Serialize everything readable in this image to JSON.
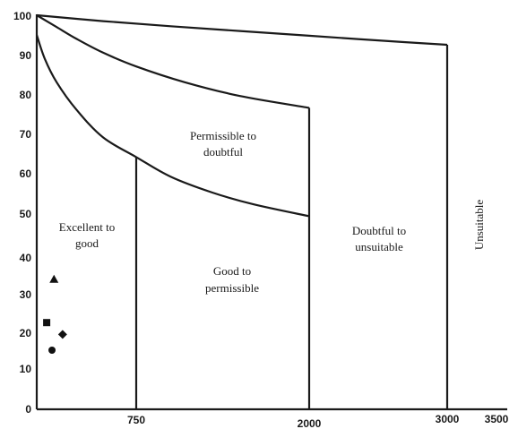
{
  "chart_data": {
    "type": "scatter",
    "title": "",
    "xlabel": "",
    "ylabel": "",
    "x_ticks": [
      "750",
      "2000",
      "3000",
      "3500"
    ],
    "y_ticks": [
      "0",
      "10",
      "20",
      "30",
      "40",
      "50",
      "60",
      "70",
      "80",
      "90",
      "100"
    ],
    "xlim": [
      0,
      3500
    ],
    "ylim": [
      0,
      100
    ],
    "region_labels": [
      {
        "id": "excellent",
        "lines": [
          "Excellent to",
          "good"
        ]
      },
      {
        "id": "permissible-doubtful",
        "lines": [
          "Permissible to",
          "doubtful"
        ]
      },
      {
        "id": "good-permissible",
        "lines": [
          "Good to",
          "permissible"
        ]
      },
      {
        "id": "doubtful-unsuitable",
        "lines": [
          "Doubtful to",
          "unsuitable"
        ]
      },
      {
        "id": "unsuitable",
        "lines": [
          "Unsuitable"
        ]
      }
    ],
    "boundary_curves": [
      {
        "id": "curve-bottom",
        "points": [
          [
            0,
            95
          ],
          [
            60,
            89
          ],
          [
            150,
            83
          ],
          [
            300,
            76
          ],
          [
            500,
            69
          ],
          [
            750,
            64
          ],
          [
            1000,
            59
          ],
          [
            1300,
            55
          ],
          [
            1600,
            52
          ],
          [
            2000,
            49
          ]
        ]
      },
      {
        "id": "curve-middle",
        "points": [
          [
            0,
            100
          ],
          [
            150,
            97
          ],
          [
            300,
            94
          ],
          [
            500,
            90.5
          ],
          [
            750,
            87
          ],
          [
            1100,
            83
          ],
          [
            1500,
            79.5
          ],
          [
            2000,
            76.5
          ]
        ]
      },
      {
        "id": "curve-top",
        "points": [
          [
            0,
            100
          ],
          [
            500,
            98.5
          ],
          [
            1000,
            97.2
          ],
          [
            1500,
            96
          ],
          [
            2000,
            94.8
          ],
          [
            2500,
            93.6
          ],
          [
            3000,
            92.5
          ]
        ]
      }
    ],
    "vertical_lines": [
      {
        "id": "vline-750",
        "x": 750,
        "y_top": 64
      },
      {
        "id": "vline-2000",
        "x": 2000,
        "y_top": 76.5
      },
      {
        "id": "vline-3000",
        "x": 3000,
        "y_top": 92.5
      }
    ],
    "points": [
      {
        "shape": "triangle",
        "x": 130,
        "y": 33
      },
      {
        "shape": "square",
        "x": 75,
        "y": 22
      },
      {
        "shape": "diamond",
        "x": 195,
        "y": 19
      },
      {
        "shape": "circle",
        "x": 115,
        "y": 15
      }
    ]
  }
}
